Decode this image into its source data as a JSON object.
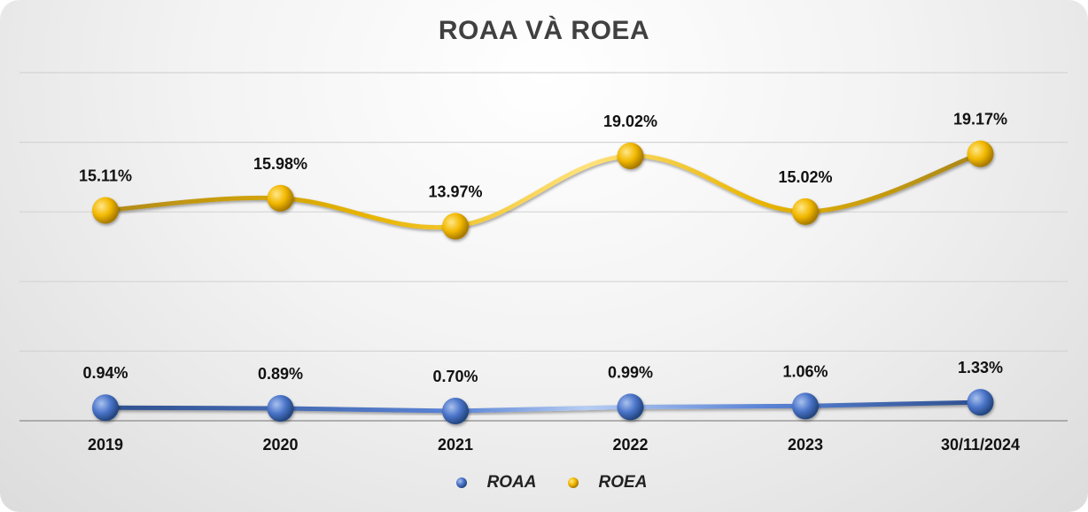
{
  "chart_data": {
    "type": "line",
    "title": "ROAA VÀ ROEA",
    "categories": [
      "2019",
      "2020",
      "2021",
      "2022",
      "2023",
      "30/11/2024"
    ],
    "series": [
      {
        "name": "ROAA",
        "values": [
          0.94,
          0.89,
          0.7,
          0.99,
          1.06,
          1.33
        ],
        "labels": [
          "0.94%",
          "0.89%",
          "0.70%",
          "0.99%",
          "1.06%",
          "1.33%"
        ],
        "color": "#3a63b8"
      },
      {
        "name": "ROEA",
        "values": [
          15.11,
          15.98,
          13.97,
          19.02,
          15.02,
          19.17
        ],
        "labels": [
          "15.11%",
          "15.98%",
          "13.97%",
          "19.02%",
          "15.02%",
          "19.17%"
        ],
        "color": "#f0b400"
      }
    ],
    "ylim": [
      0,
      25
    ],
    "grid": true,
    "legend_position": "bottom"
  }
}
